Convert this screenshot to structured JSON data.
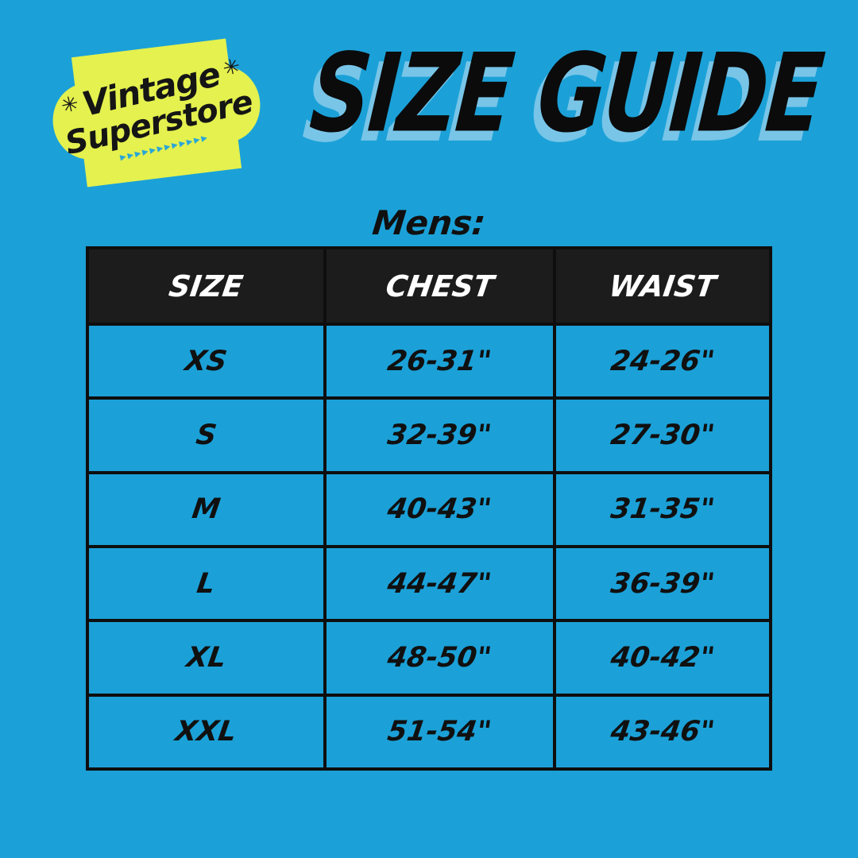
{
  "page": {
    "background_color": "#1BA1D8"
  },
  "logo": {
    "line1": "Vintage",
    "line2": "Superstore",
    "star": "✳",
    "arrows": "▸▸▸▸▸▸▸▸▸▸▸▸",
    "badge_color": "#E4F14E",
    "text_color": "#151515",
    "arrow_color": "#2AA6D6"
  },
  "title": {
    "text": "SIZE GUIDE",
    "color": "#0B0B0B",
    "shadow_color": "#78C5E8"
  },
  "section_label": "Mens:",
  "table": {
    "headers": [
      "SIZE",
      "CHEST",
      "WAIST"
    ],
    "rows": [
      [
        "XS",
        "26-31\"",
        "24-26\""
      ],
      [
        "S",
        "32-39\"",
        "27-30\""
      ],
      [
        "M",
        "40-43\"",
        "31-35\""
      ],
      [
        "L",
        "44-47\"",
        "36-39\""
      ],
      [
        "XL",
        "48-50\"",
        "40-42\""
      ],
      [
        "XXL",
        "51-54\"",
        "43-46\""
      ]
    ],
    "header_bg": "#1C1C1C",
    "header_text_color": "#FFFFFF",
    "cell_bg": "#1BA1D8",
    "border_color": "#0E0E0E"
  }
}
